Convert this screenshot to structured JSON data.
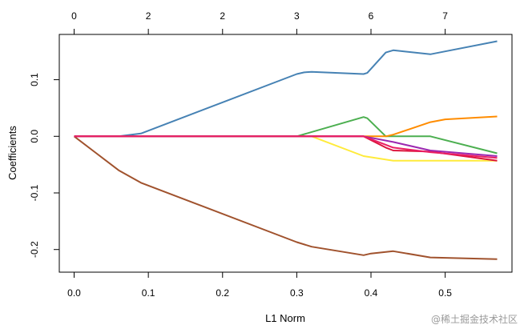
{
  "chart_data": {
    "type": "line",
    "title": "",
    "xlabel": "L1 Norm",
    "ylabel": "Coefficients",
    "xlim": [
      -0.02,
      0.59
    ],
    "ylim": [
      -0.24,
      0.18
    ],
    "x_ticks": [
      0.0,
      0.1,
      0.2,
      0.3,
      0.4,
      0.5
    ],
    "x_tick_labels": [
      "0.0",
      "0.1",
      "0.2",
      "0.3",
      "0.4",
      "0.5"
    ],
    "y_ticks": [
      -0.2,
      -0.1,
      0.0,
      0.1
    ],
    "y_tick_labels": [
      "-0.2",
      "-0.1",
      "0.0",
      "0.1"
    ],
    "top_axis": {
      "ticks": [
        0.0,
        0.1,
        0.2,
        0.3,
        0.4,
        0.5
      ],
      "labels": [
        "0",
        "2",
        "2",
        "3",
        "6",
        "7"
      ]
    },
    "grid": false,
    "legend": "none",
    "series": [
      {
        "color": "#4682b4",
        "x": [
          0,
          0.06,
          0.09,
          0.3,
          0.31,
          0.32,
          0.39,
          0.395,
          0.42,
          0.43,
          0.48,
          0.5,
          0.57
        ],
        "values": [
          0,
          0,
          0.005,
          0.11,
          0.113,
          0.114,
          0.11,
          0.112,
          0.148,
          0.152,
          0.145,
          0.15,
          0.168
        ]
      },
      {
        "color": "#a0522d",
        "x": [
          0,
          0.03,
          0.06,
          0.09,
          0.3,
          0.32,
          0.39,
          0.4,
          0.43,
          0.48,
          0.57
        ],
        "values": [
          0,
          -0.03,
          -0.06,
          -0.082,
          -0.187,
          -0.195,
          -0.21,
          -0.207,
          -0.203,
          -0.214,
          -0.217
        ]
      },
      {
        "color": "#4caf50",
        "x": [
          0,
          0.3,
          0.39,
          0.395,
          0.42,
          0.48,
          0.57
        ],
        "values": [
          0,
          0,
          0.034,
          0.032,
          0,
          0,
          -0.03
        ]
      },
      {
        "color": "#ff8c00",
        "x": [
          0,
          0.42,
          0.43,
          0.48,
          0.5,
          0.57
        ],
        "values": [
          0,
          0,
          0.003,
          0.025,
          0.03,
          0.035
        ]
      },
      {
        "color": "#ffeb3b",
        "x": [
          0,
          0.32,
          0.39,
          0.43,
          0.57
        ],
        "values": [
          0,
          0,
          -0.035,
          -0.043,
          -0.043
        ]
      },
      {
        "color": "#dc143c",
        "x": [
          0,
          0.39,
          0.42,
          0.43,
          0.48,
          0.57
        ],
        "values": [
          0,
          0,
          -0.02,
          -0.025,
          -0.027,
          -0.043
        ]
      },
      {
        "color": "#9c27b0",
        "x": [
          0,
          0.39,
          0.43,
          0.48,
          0.57
        ],
        "values": [
          0,
          0,
          -0.01,
          -0.025,
          -0.035
        ]
      },
      {
        "color": "#e91e63",
        "x": [
          0,
          0.39,
          0.43,
          0.48,
          0.57
        ],
        "values": [
          0,
          0,
          -0.02,
          -0.028,
          -0.038
        ]
      }
    ]
  },
  "watermark": "@稀土掘金技术社区"
}
